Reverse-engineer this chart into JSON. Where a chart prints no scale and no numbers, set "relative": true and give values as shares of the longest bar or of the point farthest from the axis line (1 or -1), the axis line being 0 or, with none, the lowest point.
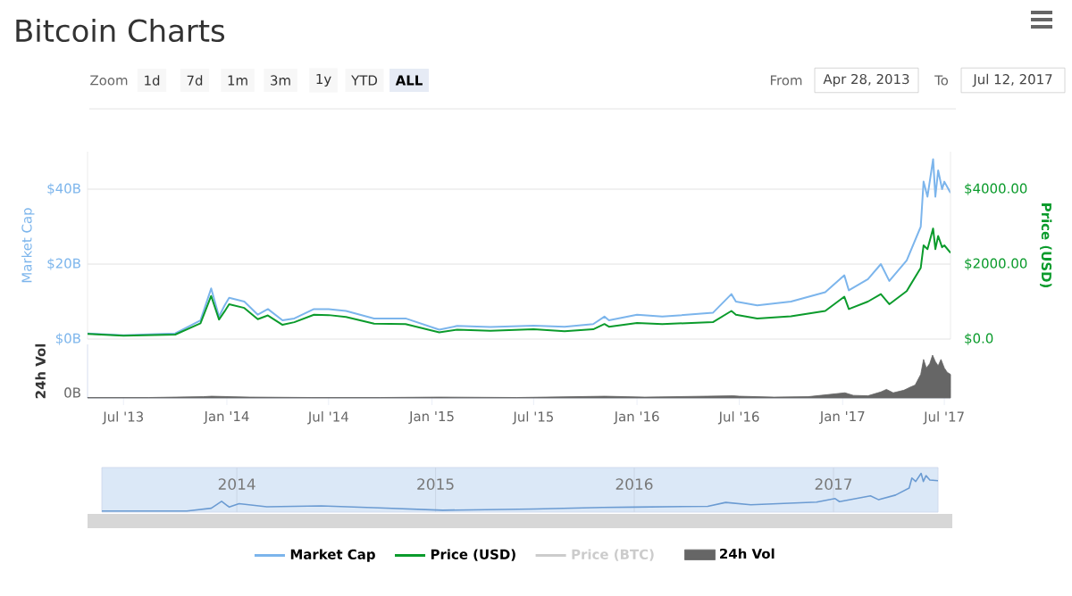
{
  "chart_data": [
    {
      "type": "line",
      "title": "Bitcoin Charts",
      "ylabel": "Market Cap",
      "y2label": "Price (USD)",
      "annotations": [
        "Zoom",
        "1d",
        "7d",
        "1m",
        "3m",
        "1y",
        "YTD",
        "ALL",
        "From",
        "Apr 28, 2013",
        "To",
        "Jul 12, 2017"
      ],
      "x": [
        "2013-04-28",
        "2013-07-01",
        "2013-10-01",
        "2013-11-15",
        "2013-12-04",
        "2013-12-18",
        "2013-12-28",
        "2014-01-05",
        "2014-02-01",
        "2014-02-25",
        "2014-03-15",
        "2014-04-10",
        "2014-05-01",
        "2014-06-05",
        "2014-07-01",
        "2014-08-01",
        "2014-09-20",
        "2014-11-15",
        "2015-01-14",
        "2015-02-15",
        "2015-04-15",
        "2015-07-01",
        "2015-08-25",
        "2015-10-15",
        "2015-11-04",
        "2015-11-12",
        "2016-01-01",
        "2016-02-15",
        "2016-05-15",
        "2016-06-17",
        "2016-06-25",
        "2016-08-02",
        "2016-10-01",
        "2016-12-01",
        "2017-01-04",
        "2017-01-12",
        "2017-02-15",
        "2017-03-10",
        "2017-03-25",
        "2017-04-25",
        "2017-05-20",
        "2017-05-25",
        "2017-06-01",
        "2017-06-11",
        "2017-06-15",
        "2017-06-20",
        "2017-06-27",
        "2017-07-01",
        "2017-07-12"
      ],
      "series": [
        {
          "name": "Market Cap",
          "color": "#7cb5ec",
          "values": [
            1.5,
            1.0,
            1.5,
            5,
            13.5,
            6,
            9,
            11,
            10,
            6.5,
            8,
            5,
            5.5,
            8,
            8,
            7.5,
            5.5,
            5.5,
            2.5,
            3.5,
            3.2,
            3.6,
            3.3,
            4,
            6,
            5,
            6.5,
            6,
            7,
            12,
            10,
            9,
            10,
            12.5,
            17,
            13,
            16,
            20,
            15.5,
            21,
            30,
            42,
            38,
            48,
            38,
            45,
            40,
            42,
            39
          ]
        },
        {
          "name": "Price (USD)",
          "color": "#0b9b2c",
          "axis": "y2",
          "values": [
            140,
            90,
            120,
            420,
            1150,
            520,
            740,
            930,
            830,
            530,
            630,
            380,
            450,
            650,
            640,
            590,
            410,
            400,
            180,
            250,
            220,
            260,
            210,
            260,
            400,
            330,
            430,
            400,
            450,
            750,
            650,
            550,
            610,
            750,
            1130,
            800,
            1000,
            1200,
            930,
            1280,
            1900,
            2500,
            2400,
            2950,
            2400,
            2750,
            2450,
            2500,
            2300
          ]
        },
        {
          "name": "Price (BTC)",
          "color": "#cccccc",
          "values": [
            null,
            null,
            null,
            null,
            null,
            null,
            null,
            null,
            null,
            null,
            null,
            null,
            null,
            null,
            null,
            null,
            null,
            null,
            null,
            null,
            null,
            null,
            null,
            null,
            null,
            null,
            null,
            null,
            null,
            null,
            null,
            null,
            null,
            null,
            null,
            null,
            null,
            null,
            null,
            null,
            null,
            null,
            null,
            null,
            null,
            null,
            null,
            null,
            null
          ]
        }
      ],
      "xlim": [
        "2013-04-28",
        "2017-07-12"
      ],
      "ylim": [
        0,
        50
      ],
      "yticks": [
        {
          "value": 0,
          "label": "$0B"
        },
        {
          "value": 20,
          "label": "$20B"
        },
        {
          "value": 40,
          "label": "$40B"
        }
      ],
      "y2lim": [
        0,
        5000
      ],
      "y2ticks": [
        {
          "value": 0,
          "label": "$0.0"
        },
        {
          "value": 2000,
          "label": "$2000.00"
        },
        {
          "value": 4000,
          "label": "$4000.00"
        }
      ],
      "tick_labels": "y",
      "grid": "y",
      "legend": "bottom"
    },
    {
      "type": "area",
      "ylabel": "24h Vol",
      "relative": true,
      "annotations": [
        "0B"
      ],
      "x": [
        "2013-04-28",
        "2013-05-15",
        "2013-08-15",
        "2013-11-20",
        "2013-12-05",
        "2014-02-10",
        "2014-06-01",
        "2014-10-01",
        "2015-01-15",
        "2015-06-01",
        "2015-11-05",
        "2016-01-15",
        "2016-06-20",
        "2016-07-01",
        "2016-09-01",
        "2016-11-01",
        "2017-01-05",
        "2017-01-20",
        "2017-02-15",
        "2017-03-10",
        "2017-03-20",
        "2017-04-01",
        "2017-04-20",
        "2017-05-01",
        "2017-05-10",
        "2017-05-20",
        "2017-05-25",
        "2017-05-30",
        "2017-06-05",
        "2017-06-10",
        "2017-06-15",
        "2017-06-20",
        "2017-06-25",
        "2017-07-01",
        "2017-07-06",
        "2017-07-12"
      ],
      "series": [
        {
          "name": "24h Vol",
          "color": "#666666",
          "values": [
            0.01,
            0.01,
            0.01,
            0.03,
            0.04,
            0.02,
            0.01,
            0.01,
            0.02,
            0.01,
            0.04,
            0.02,
            0.05,
            0.04,
            0.02,
            0.03,
            0.12,
            0.06,
            0.05,
            0.14,
            0.2,
            0.12,
            0.18,
            0.25,
            0.3,
            0.55,
            0.9,
            0.7,
            0.8,
            1.0,
            0.85,
            0.75,
            0.9,
            0.7,
            0.6,
            0.55
          ]
        }
      ],
      "xlim": [
        "2013-04-28",
        "2017-07-12"
      ],
      "xticks": [
        {
          "value": "2013-07-01",
          "label": "Jul '13"
        },
        {
          "value": "2014-01-01",
          "label": "Jan '14"
        },
        {
          "value": "2014-07-01",
          "label": "Jul '14"
        },
        {
          "value": "2015-01-01",
          "label": "Jan '15"
        },
        {
          "value": "2015-07-01",
          "label": "Jul '15"
        },
        {
          "value": "2016-01-01",
          "label": "Jan '16"
        },
        {
          "value": "2016-07-01",
          "label": "Jul '16"
        },
        {
          "value": "2017-01-01",
          "label": "Jan '17"
        },
        {
          "value": "2017-07-01",
          "label": "Jul '17"
        }
      ],
      "legend": "bottom"
    },
    {
      "type": "line",
      "relative": true,
      "x": [
        "2013-04-28",
        "2013-10-01",
        "2013-11-15",
        "2013-12-04",
        "2013-12-18",
        "2014-01-05",
        "2014-02-25",
        "2014-06-05",
        "2014-09-20",
        "2015-01-14",
        "2015-07-01",
        "2015-11-04",
        "2016-01-01",
        "2016-05-15",
        "2016-06-17",
        "2016-08-02",
        "2016-12-01",
        "2017-01-04",
        "2017-01-12",
        "2017-03-10",
        "2017-03-25",
        "2017-04-25",
        "2017-05-20",
        "2017-05-25",
        "2017-06-01",
        "2017-06-11",
        "2017-06-15",
        "2017-06-20",
        "2017-06-27",
        "2017-07-12"
      ],
      "series": [
        {
          "color": "#6b9bd2",
          "values": [
            0.03,
            0.03,
            0.1,
            0.28,
            0.13,
            0.22,
            0.14,
            0.16,
            0.11,
            0.05,
            0.08,
            0.12,
            0.13,
            0.15,
            0.25,
            0.19,
            0.26,
            0.35,
            0.27,
            0.42,
            0.32,
            0.44,
            0.62,
            0.88,
            0.79,
            1,
            0.79,
            0.94,
            0.83,
            0.81
          ]
        }
      ],
      "xlim": [
        "2013-04-28",
        "2017-07-12"
      ],
      "xticks": [
        {
          "value": "2014",
          "label": "2014"
        },
        {
          "value": "2015",
          "label": "2015"
        },
        {
          "value": "2016",
          "label": "2016"
        },
        {
          "value": "2017",
          "label": "2017"
        }
      ],
      "grid": "x"
    }
  ]
}
